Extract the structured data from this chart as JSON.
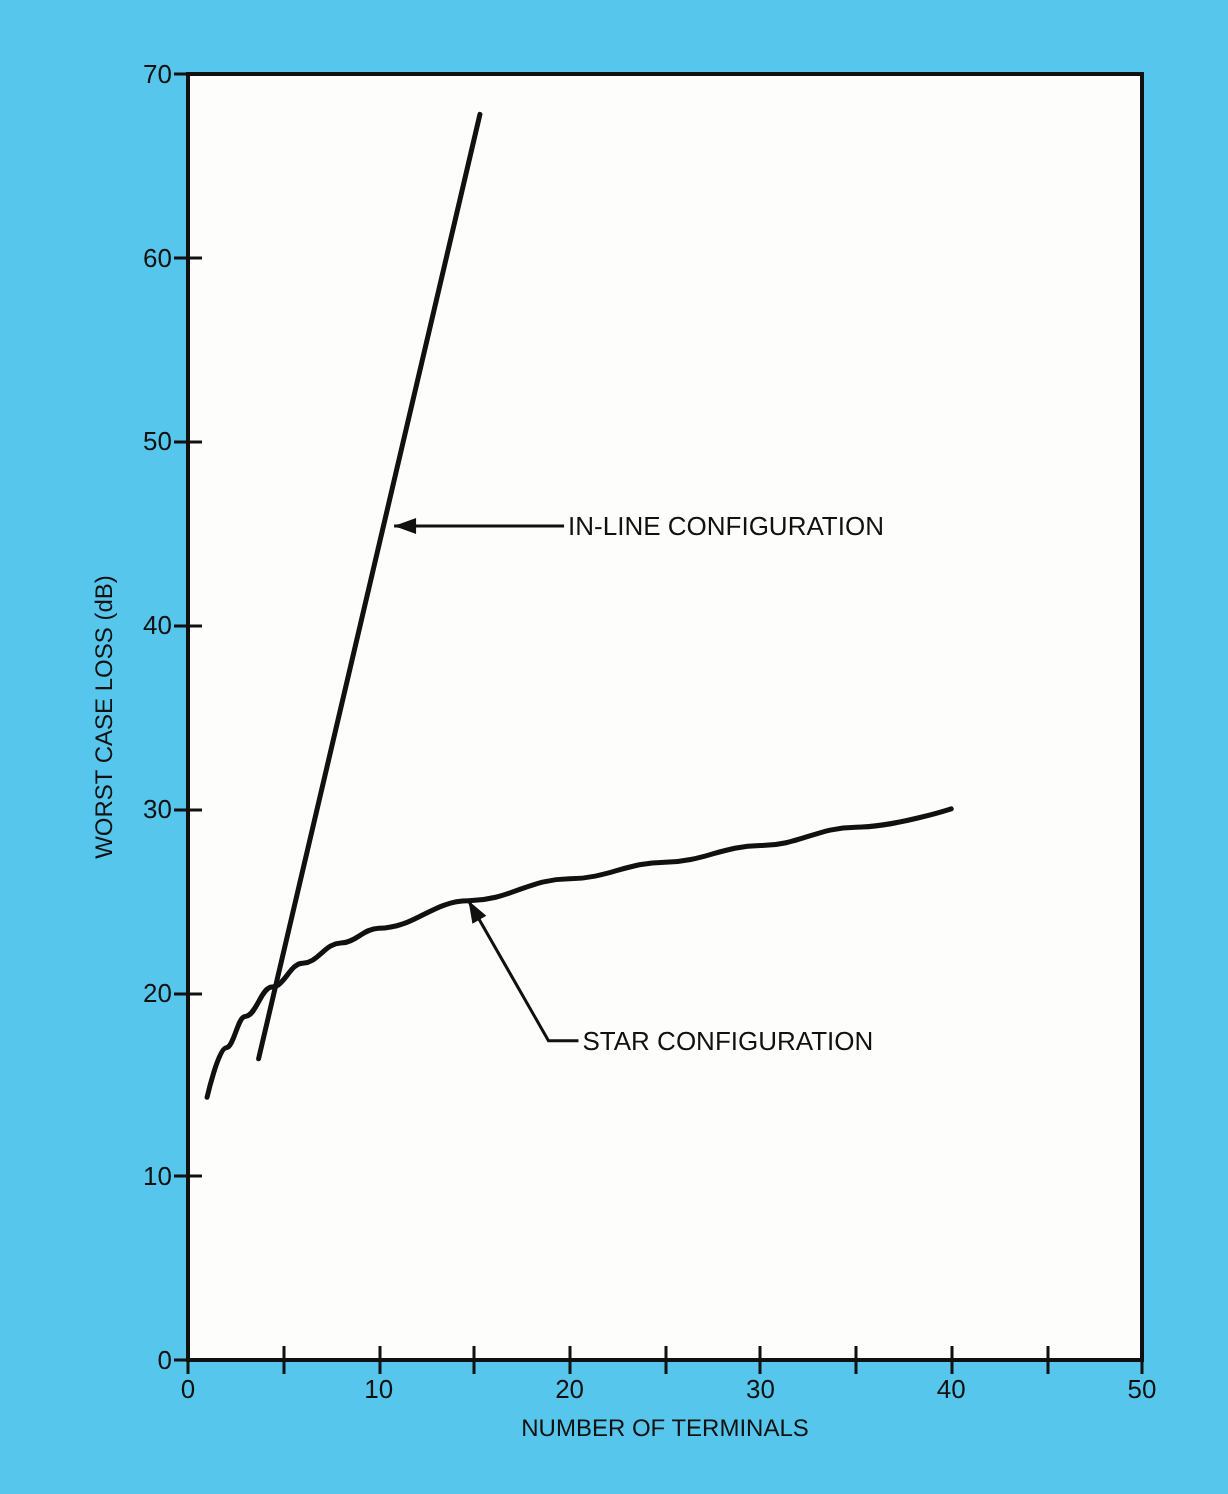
{
  "chart_data": {
    "type": "line",
    "xlabel": "NUMBER OF TERMINALS",
    "ylabel": "WORST CASE LOSS (dB)",
    "xlim": [
      0,
      50
    ],
    "ylim": [
      0,
      70
    ],
    "xticks": [
      0,
      {
        "value": 5,
        "label": null
      },
      10,
      {
        "value": 15,
        "label": null
      },
      20,
      {
        "value": 25,
        "label": null
      },
      30,
      {
        "value": 35,
        "label": null
      },
      40,
      {
        "value": 45,
        "label": null
      },
      50
    ],
    "yticks": [
      0,
      10,
      20,
      30,
      40,
      50,
      60,
      70
    ],
    "grid": false,
    "marker": "none",
    "line_style": "solid",
    "series": [
      {
        "color": "#111111",
        "x": [
          3.7,
          15.3
        ],
        "values": [
          16.4,
          67.8
        ]
      },
      {
        "color": "#111111",
        "x": [
          1,
          2,
          3,
          4.4,
          6,
          8,
          10,
          14.7,
          20,
          25,
          30,
          35,
          40
        ],
        "values": [
          14.3,
          17.0,
          18.7,
          20.3,
          21.6,
          22.7,
          23.5,
          25.0,
          26.2,
          27.1,
          28.0,
          29.0,
          30.0
        ]
      }
    ],
    "annotations": [
      {
        "text": "IN-LINE CONFIGURATION",
        "x": 10.8,
        "y": 45.4
      },
      {
        "text": "STAR CONFIGURATION",
        "x": 14.7,
        "y": 25.0
      }
    ]
  }
}
